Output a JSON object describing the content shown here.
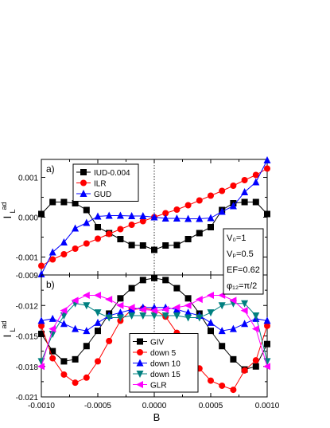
{
  "figure": {
    "xlabel": "B",
    "x_ticks": [
      "-0.0010",
      "-0.0005",
      "0.0000",
      "0.0005",
      "0.0010"
    ],
    "params": [
      "V₀=1",
      "Vₚ=0.5",
      "EF=0.62",
      "φ₁₂=π/2"
    ]
  },
  "chart_data": [
    {
      "type": "line",
      "panel_label": "a)",
      "ylabel": "I",
      "ylabel_super": "ad",
      "ylabel_sub": "L",
      "xlim": [
        -0.001,
        0.001
      ],
      "ylim": [
        -0.00145,
        0.00145
      ],
      "y_ticks": [
        {
          "v": 0.001,
          "label": "0.001"
        },
        {
          "v": 0.0,
          "label": "0.000"
        },
        {
          "v": -0.001,
          "label": "-0.001"
        }
      ],
      "legend": "top-left",
      "x": [
        -0.001,
        -0.0009,
        -0.0008,
        -0.0007,
        -0.0006,
        -0.0005,
        -0.0004,
        -0.0003,
        -0.0002,
        -0.0001,
        0.0,
        0.0001,
        0.0002,
        0.0003,
        0.0004,
        0.0005,
        0.0006,
        0.0007,
        0.0008,
        0.0009,
        0.001
      ],
      "series": [
        {
          "name": "IUD-0.004",
          "color": "#000000",
          "marker": "square",
          "values": [
            8e-05,
            0.00038,
            0.00038,
            0.00035,
            0.00018,
            -0.00025,
            -0.0004,
            -0.00055,
            -0.0007,
            -0.00071,
            -0.00082,
            -0.00071,
            -0.0007,
            -0.00055,
            -0.0004,
            -0.00025,
            0.00018,
            0.00035,
            0.00038,
            0.00038,
            8e-05
          ]
        },
        {
          "name": "ILR",
          "color": "#ff0000",
          "marker": "circle",
          "values": [
            -0.00122,
            -0.00106,
            -0.00093,
            -0.00079,
            -0.00066,
            -0.00054,
            -0.00042,
            -0.0003,
            -0.00019,
            -0.0001,
            0.0,
            0.0001,
            0.00019,
            0.0003,
            0.00042,
            0.00054,
            0.00066,
            0.00079,
            0.00093,
            0.00106,
            0.00122
          ]
        },
        {
          "name": "GUD",
          "color": "#0000ff",
          "marker": "triangle-up",
          "values": [
            -0.00143,
            -0.00088,
            -0.00063,
            -0.00028,
            -0.00014,
            2e-05,
            4e-05,
            4e-05,
            3e-05,
            3e-05,
            0.0,
            -3e-05,
            -3e-05,
            -4e-05,
            -4e-05,
            -2e-05,
            0.00014,
            0.00028,
            0.00063,
            0.00088,
            0.00143
          ]
        }
      ]
    },
    {
      "type": "line",
      "panel_label": "b)",
      "ylabel": "I",
      "ylabel_super": "ad",
      "ylabel_sub": "L",
      "xlim": [
        -0.001,
        0.001
      ],
      "ylim": [
        -0.021,
        -0.009
      ],
      "y_ticks": [
        {
          "v": -0.009,
          "label": "-0.009"
        },
        {
          "v": -0.012,
          "label": "-0.012"
        },
        {
          "v": -0.015,
          "label": "-0.015"
        },
        {
          "v": -0.018,
          "label": "-0.018"
        },
        {
          "v": -0.021,
          "label": "-0.021"
        }
      ],
      "legend": "bottom-center",
      "x": [
        -0.001,
        -0.0009,
        -0.0008,
        -0.0007,
        -0.0006,
        -0.0005,
        -0.0004,
        -0.0003,
        -0.0002,
        -0.0001,
        0.0,
        0.0001,
        0.0002,
        0.0003,
        0.0004,
        0.0005,
        0.0006,
        0.0007,
        0.0008,
        0.0009,
        0.001
      ],
      "series": [
        {
          "name": "GIV",
          "color": "#000000",
          "marker": "square",
          "values": [
            -0.0148,
            -0.0165,
            -0.0175,
            -0.0173,
            -0.016,
            -0.0145,
            -0.0128,
            -0.0113,
            -0.0103,
            -0.0095,
            -0.0093,
            -0.0095,
            -0.0103,
            -0.0113,
            -0.0128,
            -0.0145,
            -0.016,
            -0.0173,
            -0.0183,
            -0.018,
            -0.0158
          ]
        },
        {
          "name": "down   5",
          "color": "#ff0000",
          "marker": "circle",
          "values": [
            -0.014,
            -0.0172,
            -0.0188,
            -0.0196,
            -0.0191,
            -0.0175,
            -0.0155,
            -0.0135,
            -0.0124,
            -0.0123,
            -0.0124,
            -0.0131,
            -0.0147,
            -0.0166,
            -0.0182,
            -0.0194,
            -0.0199,
            -0.0203,
            -0.0184,
            -0.0174,
            -0.014
          ]
        },
        {
          "name": "down 10",
          "color": "#0000ff",
          "marker": "triangle-up",
          "values": [
            -0.0135,
            -0.0133,
            -0.0138,
            -0.0143,
            -0.0145,
            -0.0137,
            -0.013,
            -0.0127,
            -0.0124,
            -0.0122,
            -0.0122,
            -0.0122,
            -0.0124,
            -0.0127,
            -0.013,
            -0.0137,
            -0.0145,
            -0.0143,
            -0.0138,
            -0.0133,
            -0.0135
          ]
        },
        {
          "name": "down 15",
          "color": "#008080",
          "marker": "triangle-down",
          "values": [
            -0.0175,
            -0.0148,
            -0.013,
            -0.0118,
            -0.012,
            -0.0127,
            -0.0132,
            -0.0132,
            -0.013,
            -0.013,
            -0.013,
            -0.013,
            -0.013,
            -0.0132,
            -0.0132,
            -0.0127,
            -0.012,
            -0.0118,
            -0.0118,
            -0.013,
            -0.0175
          ]
        },
        {
          "name": "GLR",
          "color": "#ff00ff",
          "marker": "triangle-left",
          "values": [
            -0.018,
            -0.0143,
            -0.0125,
            -0.0115,
            -0.011,
            -0.011,
            -0.0114,
            -0.012,
            -0.0122,
            -0.0124,
            -0.0125,
            -0.0124,
            -0.0122,
            -0.012,
            -0.0114,
            -0.011,
            -0.011,
            -0.0115,
            -0.0125,
            -0.0143,
            -0.018
          ]
        }
      ]
    }
  ]
}
